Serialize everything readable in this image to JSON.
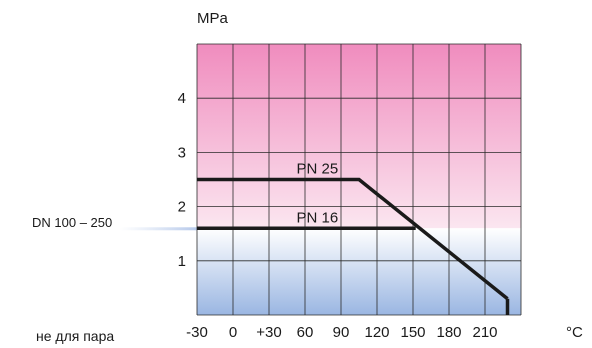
{
  "chart_data": {
    "type": "line",
    "title": "",
    "ylabel": "MPa",
    "xlabel": "°C",
    "x_ticks": [
      "-30",
      "0",
      "+30",
      "60",
      "90",
      "120",
      "150",
      "180",
      "210"
    ],
    "y_ticks": [
      "1",
      "2",
      "3",
      "4"
    ],
    "xlim": [
      -30,
      210
    ],
    "ylim": [
      0,
      5
    ],
    "grid": true,
    "series": [
      {
        "name": "PN 25",
        "points": [
          [
            -30,
            2.5
          ],
          [
            90,
            2.5
          ],
          [
            200,
            0.3
          ]
        ]
      },
      {
        "name": "PN 16",
        "points": [
          [
            -30,
            1.6
          ],
          [
            132,
            1.6
          ]
        ]
      }
    ],
    "bands": {
      "upper_colors": [
        "#f08cbe",
        "#fbe6f0"
      ],
      "lower_colors": [
        "#ffffff",
        "#9ab6e2"
      ],
      "lower_top": 1.6
    },
    "side_labels": {
      "dn": "DN 100 – 250",
      "note": "не для пара"
    }
  }
}
